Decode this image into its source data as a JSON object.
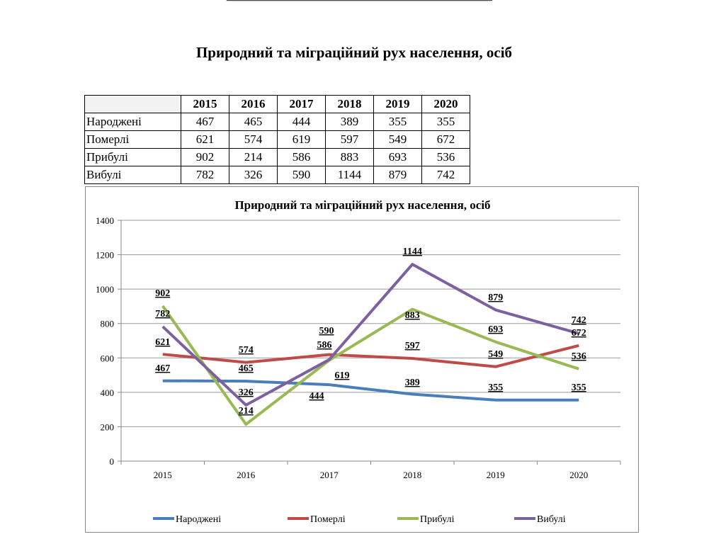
{
  "page_title": "Природний та міграційний рух населення, осіб",
  "table": {
    "headers": [
      "",
      "2015",
      "2016",
      "2017",
      "2018",
      "2019",
      "2020"
    ],
    "rows": [
      {
        "label": "Народжені",
        "values": [
          "467",
          "465",
          "444",
          "389",
          "355",
          "355"
        ]
      },
      {
        "label": "Померлі",
        "values": [
          "621",
          "574",
          "619",
          "597",
          "549",
          "672"
        ]
      },
      {
        "label": "Прибулі",
        "values": [
          "902",
          "214",
          "586",
          "883",
          "693",
          "536"
        ]
      },
      {
        "label": "Вибулі",
        "values": [
          "782",
          "326",
          "590",
          "1144",
          "879",
          "742"
        ]
      }
    ]
  },
  "chart_data": {
    "type": "line",
    "title": "Природний та міграційний рух населення, осіб",
    "categories": [
      "2015",
      "2016",
      "2017",
      "2018",
      "2019",
      "2020"
    ],
    "ylim": [
      0,
      1400
    ],
    "yticks": [
      0,
      200,
      400,
      600,
      800,
      1000,
      1200,
      1400
    ],
    "grid": true,
    "legend": "bottom",
    "series": [
      {
        "name": "Народжені",
        "color": "#4a7ebb",
        "values": [
          467,
          465,
          444,
          389,
          355,
          355
        ]
      },
      {
        "name": "Померлі",
        "color": "#be4b48",
        "values": [
          621,
          574,
          619,
          597,
          549,
          672
        ]
      },
      {
        "name": "Прибулі",
        "color": "#98b954",
        "values": [
          902,
          214,
          586,
          883,
          693,
          536
        ]
      },
      {
        "name": "Вибулі",
        "color": "#7d60a0",
        "values": [
          782,
          326,
          590,
          1144,
          879,
          742
        ]
      }
    ]
  }
}
